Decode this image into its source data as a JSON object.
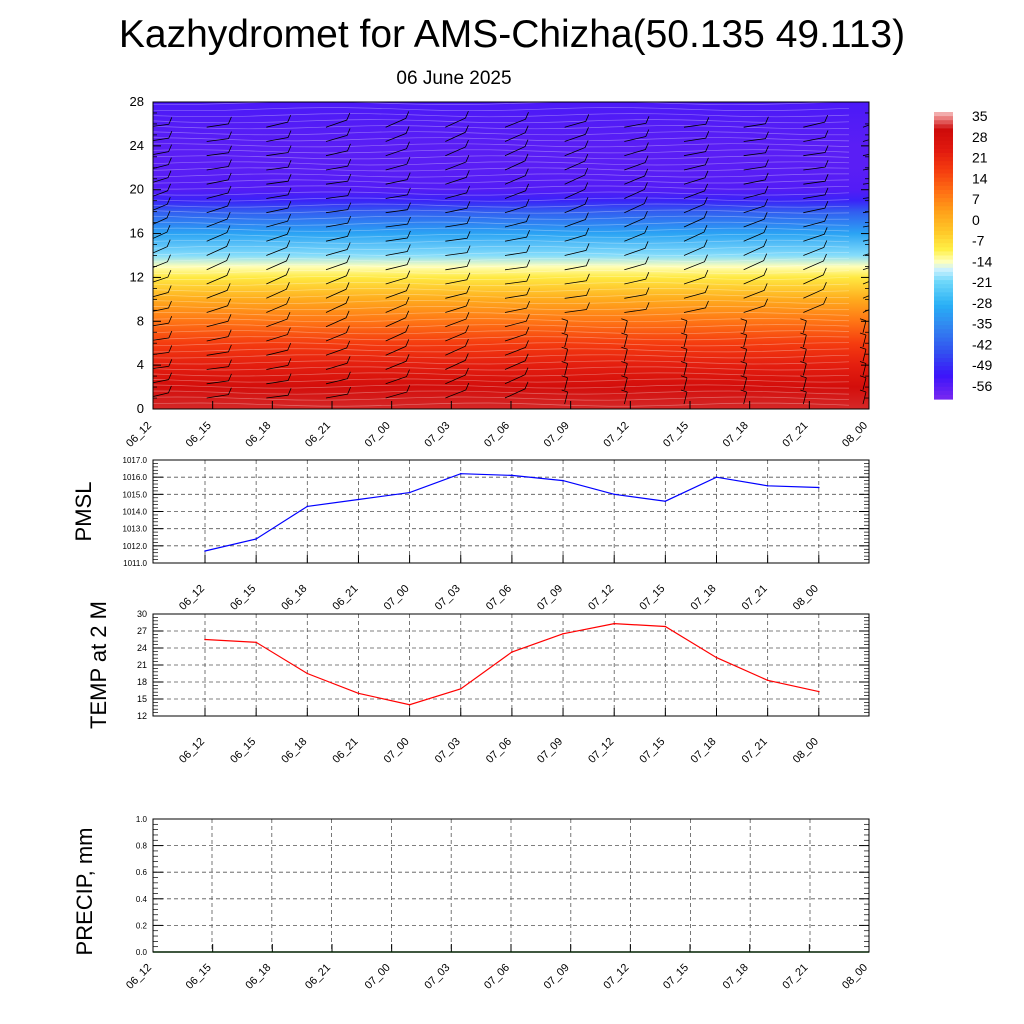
{
  "header": {
    "title": "Kazhydromet for AMS-Chizha(50.135 49.113)",
    "date": "06 June 2025"
  },
  "time_labels": [
    "06_12",
    "06_15",
    "06_18",
    "06_21",
    "07_00",
    "07_03",
    "07_06",
    "07_09",
    "07_12",
    "07_15",
    "07_18",
    "07_21",
    "08_00"
  ],
  "colors": {
    "pmsl_line": "#0000ff",
    "temp_line": "#ff0000",
    "precip_line": "#006400",
    "grid": "#555555",
    "wind_barb": "#000000"
  },
  "chart_data": [
    {
      "type": "heatmap",
      "title": "",
      "ylabel": "",
      "xlabel": "",
      "y_ticks": [
        "0",
        "4",
        "8",
        "12",
        "16",
        "20",
        "24",
        "28"
      ],
      "ylim": [
        0,
        28
      ],
      "x": [
        "06_12",
        "06_15",
        "06_18",
        "06_21",
        "07_00",
        "07_03",
        "07_06",
        "07_09",
        "07_12",
        "07_15",
        "07_18",
        "07_21",
        "08_00"
      ],
      "colorbar": {
        "labels": [
          "35",
          "28",
          "21",
          "14",
          "7",
          "0",
          "-7",
          "-14",
          "-21",
          "-28",
          "-35",
          "-42",
          "-49",
          "-56"
        ],
        "range": [
          -60,
          38
        ],
        "placement": "right"
      },
      "temperature_profile": {
        "level": [
          0,
          2,
          4,
          6,
          8,
          10,
          12,
          13,
          14,
          16,
          18,
          19,
          20,
          22,
          24,
          26,
          28
        ],
        "value": [
          33,
          30,
          24,
          18,
          10,
          2,
          -8,
          -13,
          -19,
          -30,
          -42,
          -50,
          -55,
          -56,
          -56,
          -55,
          -54
        ]
      },
      "wind_barbs": true
    },
    {
      "type": "line",
      "ylabel": "PMSL",
      "x": [
        "06_12",
        "06_15",
        "06_18",
        "06_21",
        "07_00",
        "07_03",
        "07_06",
        "07_09",
        "07_12",
        "07_15",
        "07_18",
        "07_21",
        "08_00"
      ],
      "y_ticks": [
        "1011.0",
        "1012.0",
        "1013.0",
        "1014.0",
        "1015.0",
        "1016.0",
        "1017.0"
      ],
      "ylim": [
        1011,
        1017
      ],
      "grid": true,
      "series": [
        {
          "values": [
            1011.7,
            1012.4,
            1014.3,
            1014.7,
            1015.1,
            1016.2,
            1016.1,
            1015.8,
            1015.0,
            1014.6,
            1016.0,
            1015.5,
            1015.4
          ]
        }
      ]
    },
    {
      "type": "line",
      "ylabel": "TEMP at 2 M",
      "x": [
        "06_12",
        "06_15",
        "06_18",
        "06_21",
        "07_00",
        "07_03",
        "07_06",
        "07_09",
        "07_12",
        "07_15",
        "07_18",
        "07_21",
        "08_00"
      ],
      "y_ticks": [
        "12",
        "15",
        "18",
        "21",
        "24",
        "27",
        "30"
      ],
      "ylim": [
        12,
        30
      ],
      "grid": true,
      "series": [
        {
          "values": [
            25.5,
            25.0,
            19.5,
            16.0,
            14.0,
            16.8,
            23.3,
            26.5,
            28.3,
            27.8,
            22.3,
            18.3,
            16.3
          ]
        }
      ]
    },
    {
      "type": "line",
      "ylabel": "PRECIP, mm",
      "x": [
        "06_12",
        "06_15",
        "06_18",
        "06_21",
        "07_00",
        "07_03",
        "07_06",
        "07_09",
        "07_12",
        "07_15",
        "07_18",
        "07_21",
        "08_00"
      ],
      "y_ticks": [
        "0.0",
        "0.2",
        "0.4",
        "0.6",
        "0.8",
        "1.0"
      ],
      "ylim": [
        0,
        1
      ],
      "grid": true,
      "series": [
        {
          "values": [
            0,
            0,
            0,
            0,
            0,
            0,
            0,
            0,
            0,
            0,
            0,
            0,
            0
          ]
        }
      ]
    }
  ]
}
